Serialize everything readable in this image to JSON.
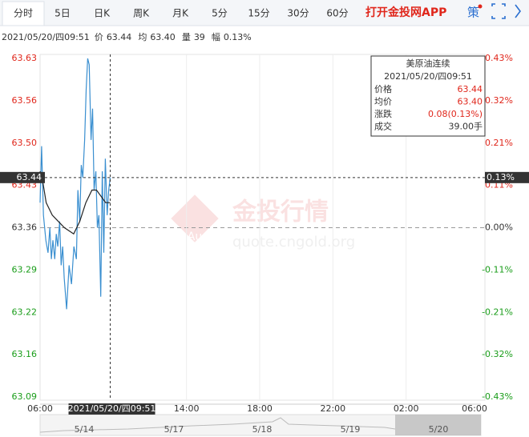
{
  "tabs": [
    "分时",
    "5日",
    "日K",
    "周K",
    "月K",
    "5分",
    "15分",
    "30分",
    "60分"
  ],
  "app_link": "打开金投网APP",
  "icon_text": "策",
  "info_line": {
    "time": "2021/05/20/四09:51",
    "items": [
      {
        "label": "价",
        "value": "63.44"
      },
      {
        "label": "均",
        "value": "63.40"
      },
      {
        "label": "量",
        "value": "39"
      },
      {
        "label": "幅",
        "value": "0.13%"
      }
    ]
  },
  "watermark": {
    "title": "金投行情",
    "url": "quote.cngold.org",
    "logo": "Au"
  },
  "chart_data": {
    "type": "line",
    "xlim": [
      0,
      1440
    ],
    "xticks": [
      {
        "value": 0,
        "label": "06:00"
      },
      {
        "value": 480,
        "label": "14:00"
      },
      {
        "value": 720,
        "label": "18:00"
      },
      {
        "value": 960,
        "label": "22:00"
      },
      {
        "value": 1200,
        "label": "02:00"
      },
      {
        "value": 1440,
        "label": "06:00"
      }
    ],
    "ylim": [
      63.09,
      63.63
    ],
    "yticks": [
      63.09,
      {
        "value": 63.1575,
        "label": "63.16"
      },
      {
        "value": 63.225,
        "label": "63.22"
      },
      {
        "value": 63.2925,
        "label": "63.29"
      },
      63.36,
      {
        "value": 63.4275,
        "label": "63.43"
      },
      {
        "value": 63.495,
        "label": "63.50"
      },
      {
        "value": 63.5625,
        "label": "63.56"
      },
      63.63
    ],
    "y2lim": [
      -0.43,
      0.43
    ],
    "y2ticks": [
      {
        "value": -0.43,
        "label": "-0.43%"
      },
      {
        "value": -0.3225,
        "label": "-0.32%"
      },
      {
        "value": -0.215,
        "label": "-0.21%"
      },
      {
        "value": -0.1075,
        "label": "-0.11%"
      },
      {
        "value": 0,
        "label": "0.00%"
      },
      {
        "value": 0.1075,
        "label": "0.11%"
      },
      {
        "value": 0.215,
        "label": "0.21%"
      },
      {
        "value": 0.3225,
        "label": "0.32%"
      },
      {
        "value": 0.43,
        "label": "0.43%"
      }
    ],
    "base_price": 63.36,
    "series": [
      {
        "name": "价格",
        "color": "#3a8fd0",
        "x": [
          0,
          5,
          11,
          19,
          26,
          32,
          37,
          42,
          48,
          53,
          58,
          64,
          69,
          74,
          79,
          87,
          95,
          103,
          111,
          119,
          124,
          130,
          135,
          140,
          146,
          151,
          156,
          161,
          167,
          172,
          177,
          183,
          188,
          193,
          199,
          204,
          209,
          214,
          220,
          225,
          230
        ],
        "values": [
          63.4,
          63.49,
          63.38,
          63.34,
          63.32,
          63.36,
          63.31,
          63.34,
          63.31,
          63.35,
          63.33,
          63.37,
          63.3,
          63.33,
          63.28,
          63.23,
          63.3,
          63.27,
          63.33,
          63.31,
          63.42,
          63.37,
          63.46,
          63.44,
          63.5,
          63.58,
          63.63,
          63.62,
          63.5,
          63.55,
          63.42,
          63.45,
          63.36,
          63.38,
          63.25,
          63.45,
          63.32,
          63.47,
          63.38,
          63.42,
          63.44
        ]
      },
      {
        "name": "均价",
        "color": "#222222",
        "x": [
          0,
          10,
          20,
          40,
          60,
          80,
          110,
          130,
          150,
          170,
          185,
          200,
          215,
          230
        ],
        "values": [
          63.45,
          63.43,
          63.4,
          63.38,
          63.37,
          63.36,
          63.35,
          63.37,
          63.4,
          63.42,
          63.42,
          63.41,
          63.4,
          63.4
        ]
      }
    ],
    "crosshair": {
      "x": 230,
      "y": 63.44,
      "y_label": "63.44",
      "y2_label": "0.13%",
      "x_label": "2021/05/20/四09:51"
    },
    "tooltip": {
      "title": "美原油连续",
      "time": "2021/05/20/四09:51",
      "rows": [
        {
          "label": "价格",
          "value": "63.44"
        },
        {
          "label": "均价",
          "value": "63.40"
        },
        {
          "label": "涨跌",
          "value": "0.08(0.13%)"
        },
        {
          "label": "成交",
          "value": "39.00手"
        }
      ]
    },
    "navigator_dates": [
      "5/14",
      "5/17",
      "5/18",
      "5/19",
      "5/20"
    ]
  }
}
